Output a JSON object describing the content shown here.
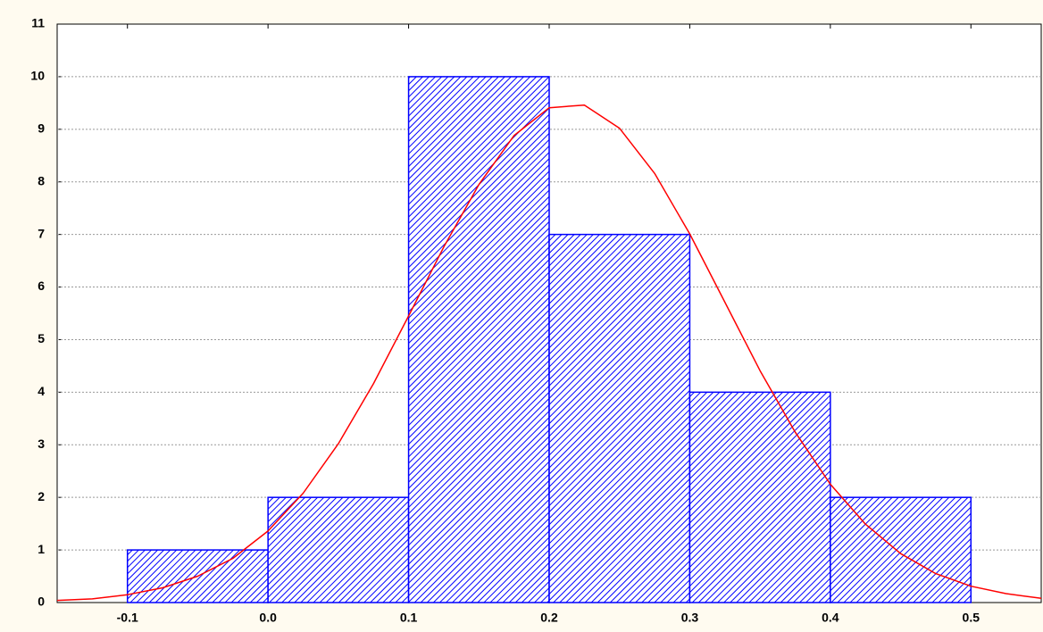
{
  "chart_data": {
    "type": "histogram",
    "bins": [
      -0.1,
      0,
      0.1,
      0.2,
      0.3,
      0.4,
      0.5
    ],
    "counts": [
      1,
      2,
      10,
      7,
      4,
      2
    ],
    "color": "#0000ff",
    "curve": {
      "color": "#ff0000",
      "x": [
        -0.15,
        -0.125,
        -0.1,
        -0.075,
        -0.05,
        -0.025,
        0,
        0.025,
        0.05,
        0.075,
        0.1,
        0.125,
        0.15,
        0.175,
        0.2,
        0.225,
        0.25,
        0.275,
        0.3,
        0.325,
        0.35,
        0.375,
        0.4,
        0.425,
        0.45,
        0.475,
        0.5,
        0.525,
        0.55
      ],
      "values": [
        0.04,
        0.07,
        0.15,
        0.28,
        0.5,
        0.84,
        1.36,
        2.08,
        3.02,
        4.16,
        5.45,
        6.76,
        7.95,
        8.88,
        9.41,
        9.46,
        9.02,
        8.16,
        7.01,
        5.71,
        4.41,
        3.24,
        2.25,
        1.49,
        0.93,
        0.55,
        0.31,
        0.17,
        0.08
      ]
    },
    "xlim": [
      -0.15,
      0.55
    ],
    "xticks": [
      -0.1,
      {
        "value": 0,
        "label": "0.0"
      },
      0.1,
      0.2,
      0.3,
      0.4,
      0.5
    ],
    "ylim": [
      0,
      11
    ],
    "yticks": [
      0,
      1,
      2,
      3,
      4,
      5,
      6,
      7,
      8,
      9,
      10,
      11
    ],
    "grid": true
  }
}
